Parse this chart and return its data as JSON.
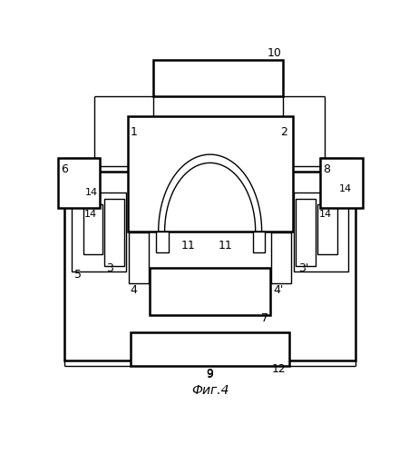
{
  "bg_color": "#ffffff",
  "title": "Фиг.4",
  "title_fontsize": 10,
  "fig_width": 4.52,
  "fig_height": 5.0,
  "dpi": 100
}
